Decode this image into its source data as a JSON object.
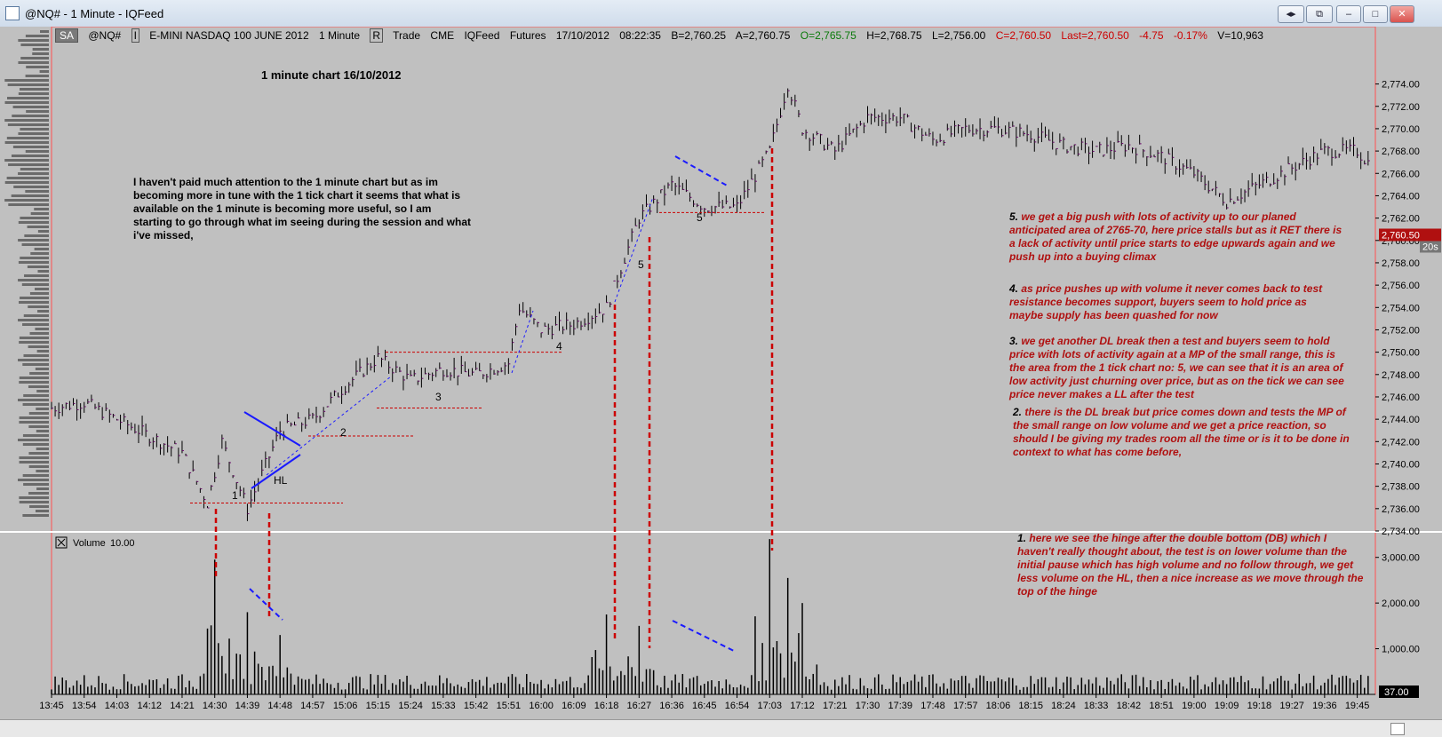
{
  "window": {
    "title": "@NQ# - 1 Minute - IQFeed",
    "buttons": [
      "◂▸",
      "⧉",
      "–",
      "□",
      "✕"
    ]
  },
  "toolbar": {
    "mode": "SA",
    "symbol": "@NQ#",
    "dropdown_marker": "I",
    "description": "E-MINI NASDAQ 100 JUNE 2012",
    "interval": "1 Minute",
    "r_marker": "R",
    "trade": "Trade",
    "exchange": "CME",
    "feed": "IQFeed",
    "type": "Futures",
    "date": "17/10/2012",
    "time": "08:22:35",
    "bid": "B=2,760.25",
    "ask": "A=2,760.75",
    "open": "O=2,765.75",
    "high": "H=2,768.75",
    "low": "L=2,756.00",
    "close": "C=2,760.50",
    "last": "Last=2,760.50",
    "change": "-4.75",
    "change_pct": "-0.17%",
    "volume": "V=10,963"
  },
  "colors": {
    "chart_bg": "#c0c0c0",
    "up_bar": "#000000",
    "note_red": "#b01010",
    "annot_blue": "#1a1aff",
    "dash_red": "#cc0000",
    "price_marker": "#b01010"
  },
  "chart_title": "1 minute chart 16/10/2012",
  "intro_note": "I haven't paid much attention to the 1 minute chart but as im becoming more in tune with the 1 tick chart it seems that what is available on the 1 minute is becoming more useful, so I am starting to go through what im seeing during the session and what i've missed,",
  "notes": [
    {
      "num": "5.",
      "text": "we get a big push with lots of activity up to our planed anticipated area of 2765-70, here price stalls but as it RET there is a lack of activity until price starts to edge upwards again and we push up into a buying climax"
    },
    {
      "num": "4.",
      "text": "as price pushes up with volume it never comes back to test resistance becomes support, buyers seem to hold price as maybe supply has been quashed for now"
    },
    {
      "num": "3.",
      "text": "we get another DL break then a test and buyers seem to hold price with lots of activity again at a MP of the small range, this is the area from the 1 tick chart no: 5, we can see that it is an area of low activity just churning over price, but as on the tick we can see price never makes a LL after the test"
    },
    {
      "num": "2.",
      "text": "there is the DL break but price comes down and tests the MP of the small range on low volume and we get a price reaction, so should I be giving my trades room all the time or is it to be done in context to what has come before,"
    },
    {
      "num": "1.",
      "text": "here we see the hinge after the double bottom (DB) which I haven't really thought about, the test is on lower volume than the initial pause which has high volume and no follow through, we get less volume on the HL, then a nice increase as we move through the top of the hinge"
    }
  ],
  "chart_labels": [
    "1",
    "HL",
    "2",
    "3",
    "4",
    "5",
    "5"
  ],
  "price_axis": {
    "ticks": [
      "2,774.00",
      "2,772.00",
      "2,770.00",
      "2,768.00",
      "2,766.00",
      "2,764.00",
      "2,762.00",
      "2,760.00",
      "2,758.00",
      "2,756.00",
      "2,754.00",
      "2,752.00",
      "2,750.00",
      "2,748.00",
      "2,746.00",
      "2,744.00",
      "2,742.00",
      "2,740.00",
      "2,738.00",
      "2,736.00",
      "2,734.00"
    ],
    "last_marker": "2,760.50",
    "timer": "20s"
  },
  "volume_panel": {
    "title": "Volume",
    "setting": "10.00",
    "ticks": [
      "3,000.00",
      "2,000.00",
      "1,000.00"
    ],
    "last_marker": "37.00"
  },
  "time_axis": [
    "13:45",
    "13:54",
    "14:03",
    "14:12",
    "14:21",
    "14:30",
    "14:39",
    "14:48",
    "14:57",
    "15:06",
    "15:15",
    "15:24",
    "15:33",
    "15:42",
    "15:51",
    "16:00",
    "16:09",
    "16:18",
    "16:27",
    "16:36",
    "16:45",
    "16:54",
    "17:03",
    "17:12",
    "17:21",
    "17:30",
    "17:39",
    "17:48",
    "17:57",
    "18:06",
    "18:15",
    "18:24",
    "18:33",
    "18:42",
    "18:51",
    "19:00",
    "19:09",
    "19:18",
    "19:27",
    "19:36",
    "19:45"
  ],
  "chart_data": {
    "type": "candlestick",
    "ylim": [
      2734,
      2775
    ],
    "series_anchors": [
      {
        "t": "13:45",
        "p": 2745
      },
      {
        "t": "13:54",
        "p": 2745.5
      },
      {
        "t": "14:03",
        "p": 2744
      },
      {
        "t": "14:12",
        "p": 2742.5
      },
      {
        "t": "14:21",
        "p": 2741
      },
      {
        "t": "14:28",
        "p": 2736.5
      },
      {
        "t": "14:32",
        "p": 2742
      },
      {
        "t": "14:39",
        "p": 2736
      },
      {
        "t": "14:48",
        "p": 2743
      },
      {
        "t": "14:57",
        "p": 2744
      },
      {
        "t": "15:06",
        "p": 2747
      },
      {
        "t": "15:15",
        "p": 2749.5
      },
      {
        "t": "15:24",
        "p": 2747.5
      },
      {
        "t": "15:33",
        "p": 2748.5
      },
      {
        "t": "15:42",
        "p": 2748
      },
      {
        "t": "15:51",
        "p": 2749
      },
      {
        "t": "15:54",
        "p": 2754
      },
      {
        "t": "16:00",
        "p": 2752
      },
      {
        "t": "16:09",
        "p": 2752.5
      },
      {
        "t": "16:18",
        "p": 2754
      },
      {
        "t": "16:27",
        "p": 2762
      },
      {
        "t": "16:36",
        "p": 2765
      },
      {
        "t": "16:45",
        "p": 2763
      },
      {
        "t": "16:54",
        "p": 2763
      },
      {
        "t": "17:03",
        "p": 2768
      },
      {
        "t": "17:08",
        "p": 2774
      },
      {
        "t": "17:12",
        "p": 2770
      },
      {
        "t": "17:21",
        "p": 2768
      },
      {
        "t": "17:30",
        "p": 2771
      },
      {
        "t": "17:39",
        "p": 2771
      },
      {
        "t": "17:48",
        "p": 2769
      },
      {
        "t": "17:57",
        "p": 2770
      },
      {
        "t": "18:06",
        "p": 2770
      },
      {
        "t": "18:15",
        "p": 2769.5
      },
      {
        "t": "18:24",
        "p": 2768.5
      },
      {
        "t": "18:33",
        "p": 2768
      },
      {
        "t": "18:42",
        "p": 2768.5
      },
      {
        "t": "18:51",
        "p": 2767.5
      },
      {
        "t": "19:00",
        "p": 2766
      },
      {
        "t": "19:09",
        "p": 2763.5
      },
      {
        "t": "19:18",
        "p": 2765
      },
      {
        "t": "19:27",
        "p": 2766.5
      },
      {
        "t": "19:36",
        "p": 2768
      },
      {
        "t": "19:45",
        "p": 2768
      },
      {
        "t": "19:48",
        "p": 2767
      }
    ],
    "volume_ylim": [
      0,
      3500
    ],
    "volume_spikes": [
      {
        "t": "14:30",
        "v": 2950
      },
      {
        "t": "14:39",
        "v": 1800
      },
      {
        "t": "14:48",
        "v": 1300
      },
      {
        "t": "16:18",
        "v": 1750
      },
      {
        "t": "16:27",
        "v": 1500
      },
      {
        "t": "17:03",
        "v": 3400
      },
      {
        "t": "17:08",
        "v": 2550
      },
      {
        "t": "17:12",
        "v": 2000
      }
    ]
  }
}
